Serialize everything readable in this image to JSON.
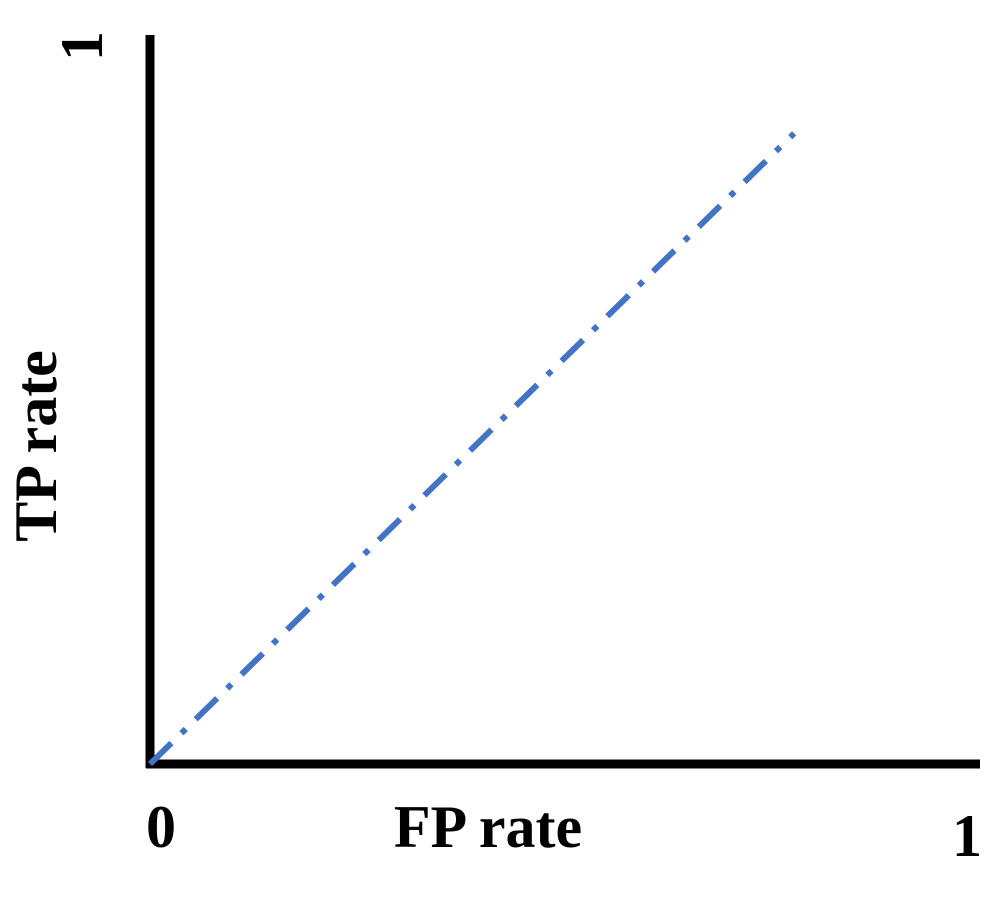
{
  "chart_data": {
    "type": "line",
    "title": "",
    "xlabel": "FP rate",
    "ylabel": "TP rate",
    "x_ticks": [
      {
        "value": 0,
        "label": "0"
      },
      {
        "value": 1,
        "label": "1"
      }
    ],
    "y_ticks": [
      {
        "value": 1,
        "label": "1"
      }
    ],
    "xlim": [
      0,
      1
    ],
    "ylim": [
      0,
      1
    ],
    "grid": false,
    "series": [
      {
        "line_style": "dash-dot",
        "color": "#4472C4",
        "x": [
          0,
          0.776
        ],
        "y": [
          0,
          0.865
        ]
      }
    ],
    "axis_color": "#000000"
  }
}
